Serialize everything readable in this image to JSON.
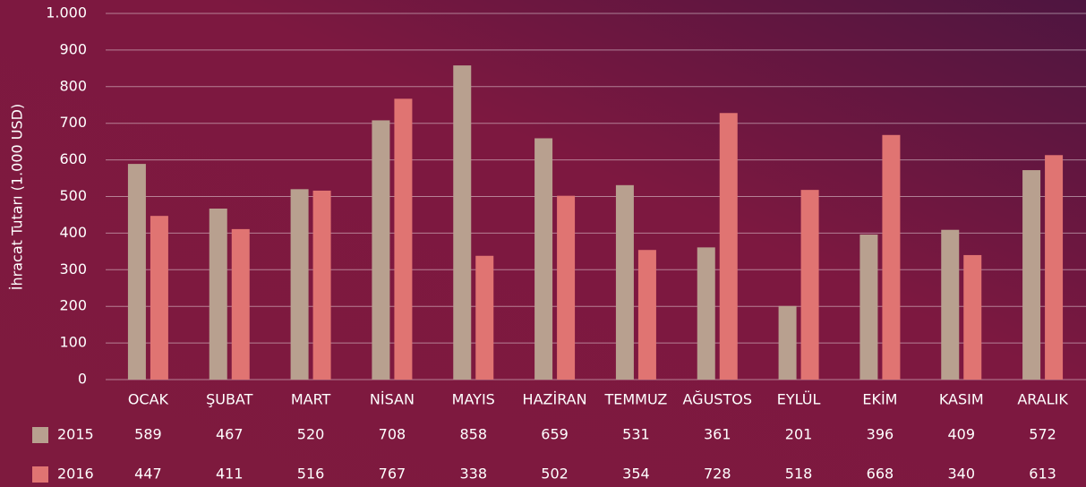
{
  "chart_data": {
    "type": "bar",
    "ylabel": "İhracat Tutarı (1.000 USD)",
    "categories": [
      "OCAK",
      "ŞUBAT",
      "MART",
      "NİSAN",
      "MAYIS",
      "HAZİRAN",
      "TEMMUZ",
      "AĞUSTOS",
      "EYLÜL",
      "EKİM",
      "KASIM",
      "ARALIK"
    ],
    "series": [
      {
        "name": "2015",
        "color": "#b8a08f",
        "values": [
          589,
          467,
          520,
          708,
          858,
          659,
          531,
          361,
          201,
          396,
          409,
          572
        ]
      },
      {
        "name": "2016",
        "color": "#e07472",
        "values": [
          447,
          411,
          516,
          767,
          338,
          502,
          354,
          728,
          518,
          668,
          340,
          613
        ]
      }
    ],
    "ylim": [
      0,
      1000
    ],
    "yticks": [
      0,
      100,
      200,
      300,
      400,
      500,
      600,
      700,
      800,
      900,
      {
        "value": 1000,
        "label": "1.000"
      }
    ],
    "grid": true
  }
}
